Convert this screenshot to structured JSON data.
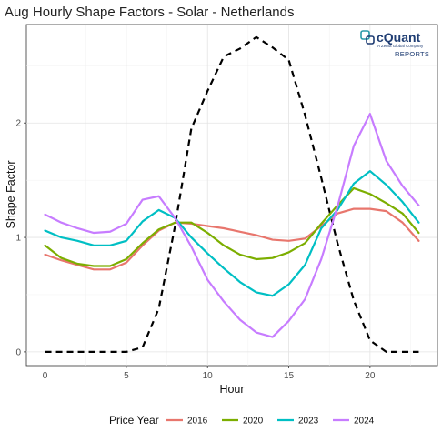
{
  "chart_data": {
    "type": "line",
    "title": "Aug Hourly Shape Factors - Solar - Netherlands",
    "xlabel": "Hour",
    "ylabel": "Shape Factor",
    "xlim": [
      -1.15,
      24.15
    ],
    "ylim": [
      -0.12,
      2.86
    ],
    "x_ticks": [
      0,
      5,
      10,
      15,
      20
    ],
    "y_ticks": [
      0,
      1,
      2
    ],
    "grid": true,
    "legend_title": "Price Year",
    "legend_position": "bottom",
    "x": [
      0,
      1,
      2,
      3,
      4,
      5,
      6,
      7,
      8,
      9,
      10,
      11,
      12,
      13,
      14,
      15,
      16,
      17,
      18,
      19,
      20,
      21,
      22,
      23
    ],
    "series": [
      {
        "name": "2016",
        "color": "#e8766d",
        "values": [
          0.85,
          0.8,
          0.76,
          0.72,
          0.72,
          0.78,
          0.93,
          1.06,
          1.13,
          1.12,
          1.1,
          1.08,
          1.05,
          1.02,
          0.98,
          0.97,
          0.99,
          1.1,
          1.21,
          1.25,
          1.25,
          1.23,
          1.13,
          0.97
        ]
      },
      {
        "name": "2020",
        "color": "#7cae00",
        "values": [
          0.93,
          0.82,
          0.77,
          0.75,
          0.75,
          0.81,
          0.95,
          1.07,
          1.13,
          1.13,
          1.04,
          0.93,
          0.85,
          0.81,
          0.82,
          0.87,
          0.95,
          1.12,
          1.28,
          1.43,
          1.38,
          1.3,
          1.21,
          1.04
        ]
      },
      {
        "name": "2023",
        "color": "#00bfc4",
        "values": [
          1.06,
          1.0,
          0.97,
          0.93,
          0.93,
          0.97,
          1.14,
          1.24,
          1.17,
          1.0,
          0.86,
          0.73,
          0.61,
          0.52,
          0.49,
          0.59,
          0.76,
          1.08,
          1.24,
          1.47,
          1.58,
          1.46,
          1.31,
          1.13
        ]
      },
      {
        "name": "2024",
        "color": "#c77cff",
        "values": [
          1.2,
          1.13,
          1.08,
          1.04,
          1.05,
          1.12,
          1.33,
          1.36,
          1.17,
          0.92,
          0.63,
          0.44,
          0.28,
          0.17,
          0.13,
          0.27,
          0.46,
          0.81,
          1.27,
          1.8,
          2.08,
          1.67,
          1.45,
          1.28
        ]
      }
    ],
    "reference_line": {
      "style": "dashed",
      "color": "#000000",
      "values": [
        0,
        0,
        0,
        0,
        0,
        0,
        0.04,
        0.38,
        1.1,
        1.95,
        2.28,
        2.58,
        2.65,
        2.75,
        2.66,
        2.55,
        2.07,
        1.52,
        0.95,
        0.45,
        0.1,
        0,
        0,
        0
      ]
    }
  },
  "logo": {
    "name": "cQuant",
    "tagline": "A Zema Global Company",
    "reports": "REPORTS"
  }
}
